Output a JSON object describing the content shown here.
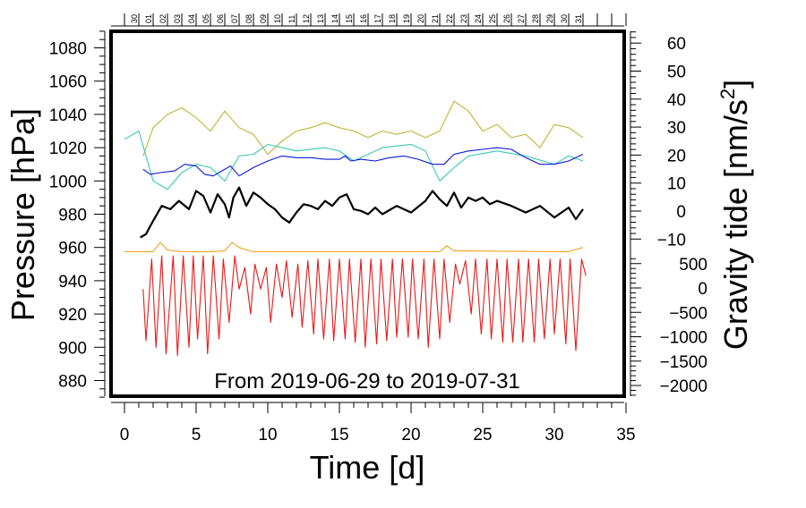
{
  "chart_data": {
    "type": "line",
    "title": "From 2019-06-29 to 2019-07-31",
    "xlabel": "Time [d]",
    "ylabel_left": "Pressure [hPa]",
    "ylabel_right": "Gravity tide [nm/s",
    "ylabel_right_sup": "2",
    "ylabel_right_end": "]",
    "xlim": [
      -1,
      35.5
    ],
    "ylim_left": [
      868,
      1090
    ],
    "x_ticks": [
      0,
      5,
      10,
      15,
      20,
      25,
      30,
      35
    ],
    "x_tick_labels": [
      "0",
      "5",
      "10",
      "15",
      "20",
      "25",
      "30",
      "35"
    ],
    "y_left_ticks": [
      880,
      900,
      920,
      940,
      960,
      980,
      1000,
      1020,
      1040,
      1060,
      1080
    ],
    "y_left_tick_labels": [
      "880",
      "900",
      "920",
      "940",
      "960",
      "980",
      "1000",
      "1020",
      "1040",
      "1060",
      "1080"
    ],
    "y_right_upper_ticks": [
      -10,
      0,
      10,
      20,
      30,
      40,
      50,
      60
    ],
    "y_right_upper_labels": [
      "−10",
      "0",
      "10",
      "20",
      "30",
      "40",
      "50",
      "60"
    ],
    "y_right_lower_ticks": [
      -2000,
      -1500,
      -1000,
      -500,
      0,
      500
    ],
    "y_right_lower_labels": [
      "−2000",
      "−1500",
      "−1000",
      "−500",
      "0",
      "500"
    ],
    "top_day_labels": [
      "30",
      "01",
      "02",
      "03",
      "04",
      "05",
      "06",
      "07",
      "08",
      "09",
      "10",
      "11",
      "12",
      "13",
      "14",
      "15",
      "16",
      "17",
      "18",
      "19",
      "20",
      "21",
      "22",
      "23",
      "24",
      "25",
      "26",
      "27",
      "28",
      "29",
      "30",
      "31"
    ],
    "series": [
      {
        "name": "olive",
        "color": "#c2b533",
        "x": [
          1.3,
          2,
          3,
          4,
          5,
          6,
          7,
          8,
          9,
          10,
          11,
          12,
          13,
          14,
          15,
          16,
          17,
          18,
          19,
          20,
          21,
          22,
          23,
          24,
          25,
          26,
          27,
          28,
          29,
          30,
          31,
          32
        ],
        "values": [
          1015,
          1032,
          1040,
          1044,
          1038,
          1030,
          1042,
          1032,
          1028,
          1016,
          1024,
          1030,
          1032,
          1035,
          1032,
          1030,
          1026,
          1030,
          1028,
          1030,
          1026,
          1030,
          1048,
          1042,
          1030,
          1034,
          1026,
          1028,
          1020,
          1034,
          1032,
          1026
        ]
      },
      {
        "name": "cyan",
        "color": "#38c8b8",
        "x": [
          0,
          1,
          2,
          3,
          4,
          5,
          6,
          7,
          8,
          9,
          10,
          12,
          14,
          15,
          16,
          18,
          20,
          21,
          22,
          23,
          24,
          26,
          28,
          30,
          31,
          32
        ],
        "values": [
          1025,
          1030,
          1000,
          995,
          1005,
          1010,
          1008,
          1000,
          1015,
          1016,
          1022,
          1018,
          1020,
          1018,
          1012,
          1020,
          1022,
          1018,
          1000,
          1008,
          1015,
          1018,
          1015,
          1010,
          1015,
          1012
        ]
      },
      {
        "name": "blue",
        "color": "#0a18d8",
        "x": [
          1.3,
          1.8,
          2.5,
          3.5,
          4.2,
          5,
          5.6,
          6.2,
          6.8,
          7.4,
          8,
          9,
          10,
          11,
          12,
          13,
          14,
          15,
          15.4,
          15.8,
          16.5,
          17.5,
          18.5,
          19.5,
          20.5,
          21.5,
          22.3,
          23,
          24,
          25,
          26,
          27,
          28,
          29,
          30,
          31,
          32
        ],
        "values": [
          1007,
          1004,
          1005,
          1006,
          1010,
          1009,
          1004,
          1003,
          1006,
          1009,
          1003,
          1008,
          1012,
          1015,
          1014,
          1014,
          1013,
          1013,
          1015,
          1012,
          1013,
          1012,
          1014,
          1015,
          1013,
          1010,
          1010,
          1016,
          1018,
          1019,
          1020,
          1019,
          1014,
          1010,
          1010,
          1012,
          1016
        ]
      },
      {
        "name": "black",
        "color": "#000000",
        "x": [
          1.1,
          1.5,
          2,
          2.6,
          3.2,
          3.8,
          4.5,
          5,
          5.5,
          6,
          6.5,
          7,
          7.3,
          7.6,
          8,
          8.5,
          9,
          9.5,
          10,
          10.5,
          11,
          11.5,
          12,
          12.5,
          13,
          13.5,
          14,
          14.5,
          15,
          15.5,
          16,
          16.5,
          17,
          17.5,
          18,
          19,
          20,
          21,
          21.5,
          22,
          22.5,
          23,
          23.5,
          24,
          24.5,
          25,
          25.5,
          26,
          27,
          28,
          29,
          30,
          30.5,
          31,
          31.5,
          32
        ],
        "values": [
          966,
          968,
          976,
          985,
          983,
          988,
          983,
          994,
          991,
          981,
          992,
          986,
          978,
          990,
          996,
          985,
          993,
          990,
          986,
          983,
          978,
          975,
          981,
          986,
          985,
          983,
          988,
          985,
          990,
          992,
          983,
          982,
          980,
          984,
          980,
          985,
          981,
          988,
          994,
          989,
          985,
          993,
          984,
          990,
          988,
          990,
          986,
          988,
          985,
          981,
          985,
          978,
          981,
          984,
          977,
          983
        ]
      },
      {
        "name": "orange",
        "color": "#f0a020",
        "x": [
          0,
          2,
          2.5,
          3,
          4,
          6,
          7,
          7.5,
          8,
          8.5,
          9,
          10,
          15,
          20,
          22,
          22.5,
          23,
          30,
          31,
          32
        ],
        "values": [
          957.5,
          957.5,
          963,
          958.5,
          957.5,
          957.5,
          958,
          963,
          960,
          958.5,
          957.5,
          957.5,
          957.5,
          957.5,
          957.5,
          961,
          958,
          957.5,
          957.5,
          960
        ]
      },
      {
        "name": "red",
        "color": "#e81818",
        "x": [
          1.3,
          1.5,
          1.9,
          2.2,
          2.6,
          2.9,
          3.4,
          3.7,
          4.1,
          4.5,
          4.8,
          5.1,
          5.5,
          5.8,
          6.2,
          6.6,
          6.9,
          7.3,
          7.7,
          8.0,
          8.4,
          8.8,
          9.1,
          9.5,
          9.9,
          10.2,
          10.6,
          11.0,
          11.3,
          11.7,
          12.1,
          12.4,
          12.8,
          13.2,
          13.5,
          13.9,
          14.3,
          14.6,
          15.0,
          15.4,
          15.7,
          16.1,
          16.5,
          16.8,
          17.2,
          17.6,
          17.9,
          18.3,
          18.7,
          19.0,
          19.4,
          19.8,
          20.1,
          20.5,
          20.9,
          21.2,
          21.6,
          22.0,
          22.3,
          22.7,
          23.1,
          23.4,
          23.8,
          24.2,
          24.5,
          24.9,
          25.3,
          25.6,
          26.0,
          26.4,
          26.7,
          27.1,
          27.5,
          27.8,
          28.2,
          28.6,
          28.9,
          29.3,
          29.7,
          30.0,
          30.4,
          30.8,
          31.1,
          31.5,
          31.9,
          32.2
        ],
        "values": [
          935,
          904,
          953,
          900,
          955,
          896,
          955,
          895,
          955,
          900,
          955,
          905,
          955,
          896,
          955,
          905,
          953,
          915,
          955,
          935,
          948,
          920,
          950,
          935,
          948,
          915,
          950,
          930,
          952,
          918,
          950,
          912,
          952,
          908,
          953,
          905,
          953,
          904,
          953,
          905,
          953,
          903,
          953,
          900,
          953,
          902,
          953,
          904,
          953,
          906,
          953,
          906,
          953,
          905,
          953,
          900,
          953,
          905,
          953,
          915,
          950,
          938,
          952,
          920,
          953,
          908,
          953,
          905,
          953,
          903,
          953,
          903,
          953,
          903,
          953,
          903,
          953,
          905,
          953,
          908,
          953,
          902,
          953,
          898,
          953,
          943
        ]
      }
    ]
  }
}
